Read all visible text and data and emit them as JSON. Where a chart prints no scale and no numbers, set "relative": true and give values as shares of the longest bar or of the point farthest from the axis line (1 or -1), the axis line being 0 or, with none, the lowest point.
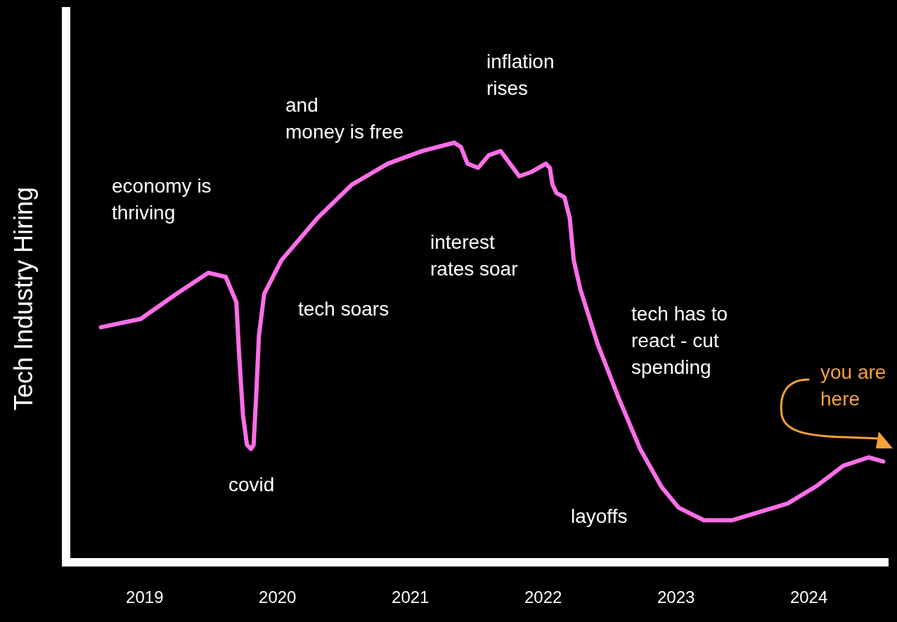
{
  "chart_data": {
    "type": "line",
    "relative": true,
    "ylabel": "Tech Industry Hiring",
    "xlim": [
      2018.44,
      2024.6
    ],
    "xticks": [
      2019,
      2020,
      2021,
      2022,
      2023,
      2024
    ],
    "series": [
      {
        "color": "#ff6ee8",
        "x": [
          2018.67,
          2018.97,
          2019.24,
          2019.48,
          2019.61,
          2019.69,
          2019.71,
          2019.74,
          2019.77,
          2019.8,
          2019.82,
          2019.84,
          2019.86,
          2019.9,
          2020.03,
          2020.3,
          2020.56,
          2020.83,
          2021.09,
          2021.33,
          2021.38,
          2021.43,
          2021.51,
          2021.59,
          2021.68,
          2021.75,
          2021.82,
          2021.91,
          2022.02,
          2022.05,
          2022.07,
          2022.1,
          2022.16,
          2022.2,
          2022.23,
          2022.28,
          2022.41,
          2022.57,
          2022.73,
          2022.89,
          2023.02,
          2023.21,
          2023.42,
          2023.63,
          2023.84,
          2024.05,
          2024.26,
          2024.45,
          2024.56
        ],
        "values": [
          0.56,
          0.58,
          0.64,
          0.69,
          0.68,
          0.62,
          0.5,
          0.35,
          0.28,
          0.27,
          0.28,
          0.4,
          0.54,
          0.64,
          0.72,
          0.82,
          0.9,
          0.95,
          0.98,
          1,
          0.99,
          0.95,
          0.94,
          0.97,
          0.98,
          0.95,
          0.92,
          0.93,
          0.95,
          0.94,
          0.9,
          0.88,
          0.87,
          0.82,
          0.72,
          0.65,
          0.52,
          0.39,
          0.27,
          0.18,
          0.13,
          0.1,
          0.1,
          0.12,
          0.14,
          0.18,
          0.23,
          0.25,
          0.24
        ]
      }
    ],
    "annotations": [
      "economy is\nthriving",
      "covid",
      "tech soars",
      "and\nmoney is free",
      "inflation\nrises",
      "interest\nrates soar",
      "tech has to\nreact - cut\nspending",
      "layoffs",
      "you are\nhere"
    ]
  }
}
